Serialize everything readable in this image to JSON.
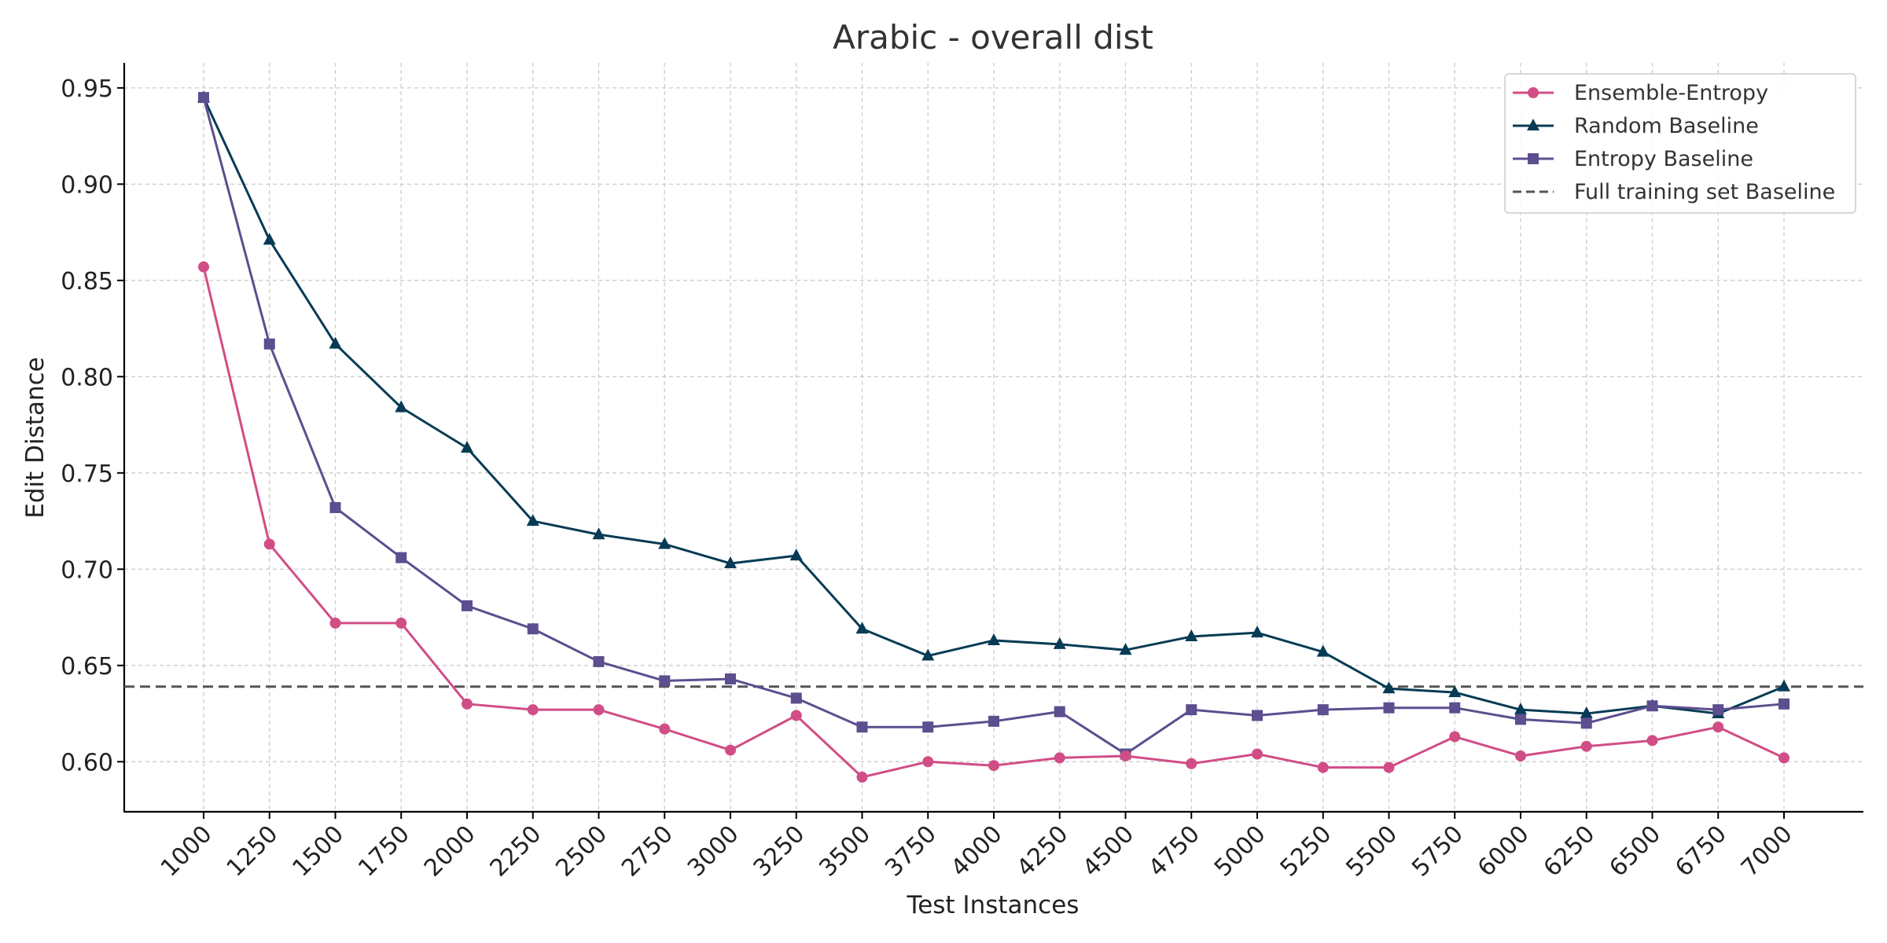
{
  "chart_data": {
    "type": "line",
    "title": "Arabic - overall dist",
    "xlabel": "Test Instances",
    "ylabel": "Edit Distance",
    "x": [
      1000,
      1250,
      1500,
      1750,
      2000,
      2250,
      2500,
      2750,
      3000,
      3250,
      3500,
      3750,
      4000,
      4250,
      4500,
      4750,
      5000,
      5250,
      5500,
      5750,
      6000,
      6250,
      6500,
      6750,
      7000
    ],
    "xticks": [
      "1000",
      "1250",
      "1500",
      "1750",
      "2000",
      "2250",
      "2500",
      "2750",
      "3000",
      "3250",
      "3500",
      "3750",
      "4000",
      "4250",
      "4500",
      "4750",
      "5000",
      "5250",
      "5500",
      "5750",
      "6000",
      "6250",
      "6500",
      "6750",
      "7000"
    ],
    "ylim": [
      0.574,
      0.963
    ],
    "yticks": [
      "0.60",
      "0.65",
      "0.70",
      "0.75",
      "0.80",
      "0.85",
      "0.90",
      "0.95"
    ],
    "ytick_values": [
      0.6,
      0.65,
      0.7,
      0.75,
      0.8,
      0.85,
      0.9,
      0.95
    ],
    "grid": true,
    "legend_position": "top-right",
    "series": [
      {
        "name": "Ensemble-Entropy",
        "color": "#d14d86",
        "marker": "circle",
        "values": [
          0.857,
          0.713,
          0.672,
          0.672,
          0.63,
          0.627,
          0.627,
          0.617,
          0.606,
          0.624,
          0.592,
          0.6,
          0.598,
          0.602,
          0.603,
          0.599,
          0.604,
          0.597,
          0.597,
          0.613,
          0.603,
          0.608,
          0.611,
          0.618,
          0.602
        ]
      },
      {
        "name": "Random Baseline",
        "color": "#073b55",
        "marker": "triangle",
        "values": [
          0.945,
          0.871,
          0.817,
          0.784,
          0.763,
          0.725,
          0.718,
          0.713,
          0.703,
          0.707,
          0.669,
          0.655,
          0.663,
          0.661,
          0.658,
          0.665,
          0.667,
          0.657,
          0.638,
          0.636,
          0.627,
          0.625,
          0.629,
          0.625,
          0.639
        ]
      },
      {
        "name": "Entropy Baseline",
        "color": "#5c4e8f",
        "marker": "square",
        "values": [
          0.945,
          0.817,
          0.732,
          0.706,
          0.681,
          0.669,
          0.652,
          0.642,
          0.643,
          0.633,
          0.618,
          0.618,
          0.621,
          0.626,
          0.604,
          0.627,
          0.624,
          0.627,
          0.628,
          0.628,
          0.622,
          0.62,
          0.629,
          0.627,
          0.63
        ]
      }
    ],
    "reference_lines": [
      {
        "name": "Full training set Baseline",
        "value": 0.639,
        "color": "#555555",
        "style": "dashed"
      }
    ]
  }
}
